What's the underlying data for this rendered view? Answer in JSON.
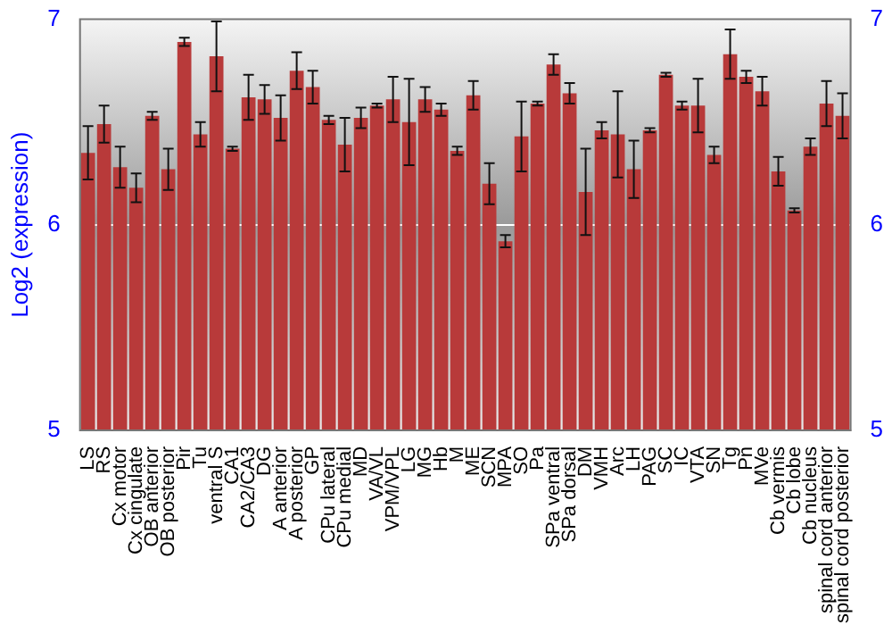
{
  "chart_data": {
    "type": "bar",
    "ylabel": "Log2 (expression)",
    "categories": [
      "LS",
      "RS",
      "Cx motor",
      "Cx cingulate",
      "OB anterior",
      "OB posterior",
      "Pir",
      "Tu",
      "ventral S",
      "CA1",
      "CA2/CA3",
      "DG",
      "A anterior",
      "A posterior",
      "GP",
      "CPu lateral",
      "CPu medial",
      "MD",
      "VA/VL",
      "VPM/VPL",
      "LG",
      "MG",
      "Hb",
      "M",
      "ME",
      "SCN",
      "MPA",
      "SO",
      "Pa",
      "SPa ventral",
      "SPa dorsal",
      "DM",
      "VMH",
      "Arc",
      "LH",
      "PAG",
      "SC",
      "IC",
      "VTA",
      "SN",
      "Tg",
      "Pn",
      "MVe",
      "Cb vermis",
      "Cb lobe",
      "Cb nucleus",
      "spinal cord anterior",
      "spinal cord posterior"
    ],
    "values": [
      6.35,
      6.49,
      6.28,
      6.18,
      6.53,
      6.27,
      6.89,
      6.44,
      6.82,
      6.37,
      6.62,
      6.61,
      6.52,
      6.75,
      6.67,
      6.51,
      6.39,
      6.52,
      6.58,
      6.61,
      6.5,
      6.61,
      6.56,
      6.36,
      6.63,
      6.2,
      5.92,
      6.43,
      6.59,
      6.78,
      6.64,
      6.16,
      6.46,
      6.44,
      6.27,
      6.46,
      6.73,
      6.58,
      6.58,
      6.34,
      6.83,
      6.72,
      6.65,
      6.26,
      6.07,
      6.38,
      6.59,
      6.53
    ],
    "errors": [
      0.13,
      0.09,
      0.1,
      0.07,
      0.02,
      0.1,
      0.02,
      0.06,
      0.17,
      0.01,
      0.11,
      0.07,
      0.11,
      0.09,
      0.08,
      0.02,
      0.13,
      0.05,
      0.01,
      0.11,
      0.21,
      0.06,
      0.03,
      0.02,
      0.07,
      0.1,
      0.03,
      0.17,
      0.01,
      0.05,
      0.05,
      0.21,
      0.04,
      0.21,
      0.14,
      0.01,
      0.01,
      0.02,
      0.13,
      0.04,
      0.12,
      0.03,
      0.07,
      0.07,
      0.01,
      0.04,
      0.11,
      0.11
    ],
    "color": "#b83a3a",
    "ylim": [
      5,
      7
    ],
    "yticks": [
      5,
      6,
      7
    ],
    "y2lim": [
      5,
      7
    ],
    "y2ticks": [
      5,
      6,
      7
    ],
    "grid": "y",
    "legend": false
  }
}
